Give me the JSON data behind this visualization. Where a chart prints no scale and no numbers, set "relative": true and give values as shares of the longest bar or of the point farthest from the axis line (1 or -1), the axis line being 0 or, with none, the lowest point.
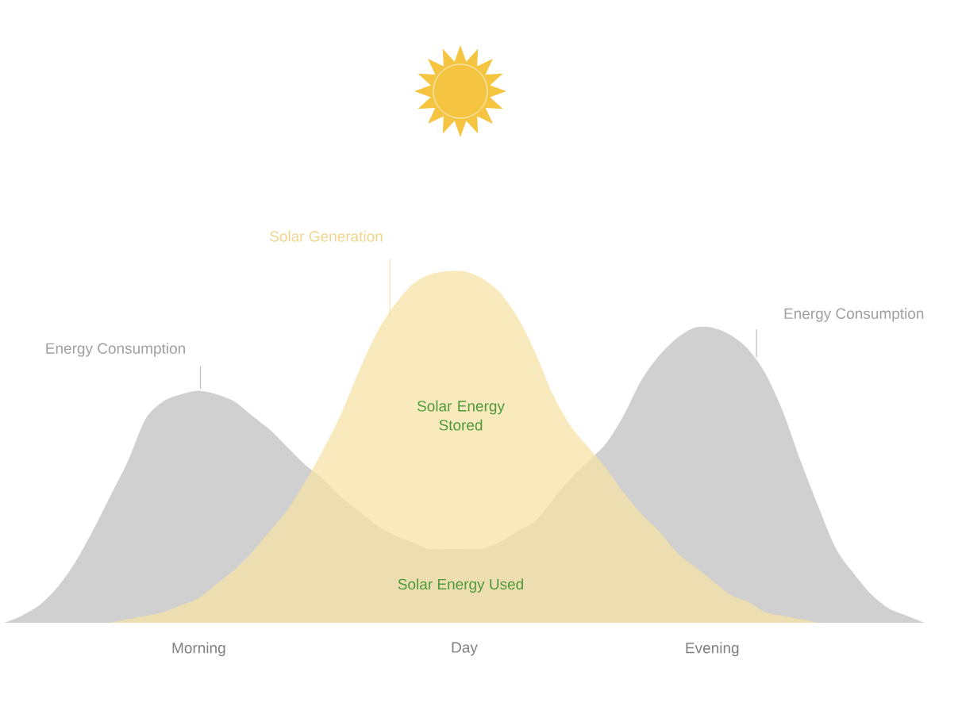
{
  "chart_data": {
    "type": "area",
    "relative": true,
    "categories": [
      null,
      null,
      null,
      null,
      null,
      null,
      null,
      null,
      null,
      null,
      null,
      "Morning",
      null,
      null,
      null,
      null,
      null,
      null,
      null,
      null,
      null,
      null,
      null,
      null,
      null,
      null,
      "Day",
      null,
      null,
      null,
      null,
      null,
      null,
      null,
      null,
      null,
      null,
      null,
      null,
      null,
      "Evening",
      null,
      null,
      null,
      null,
      null,
      null,
      null,
      null,
      null,
      null,
      null,
      null
    ],
    "series": [
      {
        "name": "Energy Consumption",
        "color": "#d0d0d0",
        "values": [
          0,
          0.02,
          0.05,
          0.1,
          0.17,
          0.26,
          0.36,
          0.46,
          0.58,
          0.63,
          0.65,
          0.66,
          0.65,
          0.63,
          0.59,
          0.55,
          0.5,
          0.45,
          0.41,
          0.36,
          0.32,
          0.28,
          0.25,
          0.23,
          0.21,
          0.21,
          0.21,
          0.21,
          0.23,
          0.26,
          0.29,
          0.35,
          0.41,
          0.46,
          0.51,
          0.59,
          0.69,
          0.76,
          0.81,
          0.84,
          0.84,
          0.82,
          0.78,
          0.71,
          0.6,
          0.46,
          0.33,
          0.21,
          0.14,
          0.08,
          0.04,
          0.02,
          0
        ]
      },
      {
        "name": "Solar Generation",
        "color": "#f6e3a6",
        "values": [
          null,
          null,
          null,
          null,
          null,
          null,
          0,
          0.01,
          0.02,
          0.03,
          0.05,
          0.07,
          0.11,
          0.15,
          0.2,
          0.26,
          0.32,
          0.4,
          0.49,
          0.59,
          0.71,
          0.82,
          0.9,
          0.96,
          0.99,
          1,
          1,
          0.98,
          0.94,
          0.87,
          0.77,
          0.65,
          0.56,
          0.5,
          0.44,
          0.37,
          0.31,
          0.26,
          0.2,
          0.16,
          0.12,
          0.08,
          0.06,
          0.03,
          0.02,
          0.01,
          0,
          null,
          null,
          null,
          null,
          null,
          null
        ]
      }
    ],
    "annotations": [
      "Energy Consumption",
      "Solar Energy Stored",
      "Solar Energy Used"
    ]
  }
}
